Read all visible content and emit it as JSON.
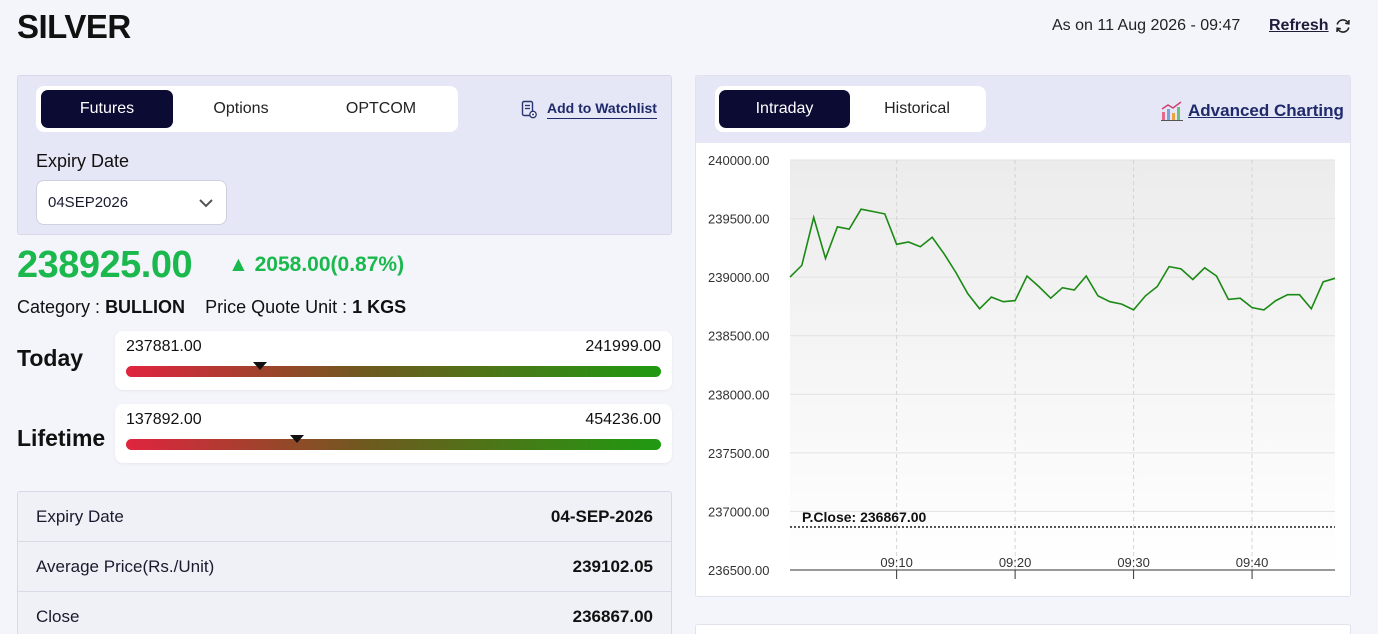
{
  "header": {
    "title": "SILVER",
    "as_of": "As on 11 Aug 2026 - 09:47",
    "refresh_label": "Refresh"
  },
  "instrument_tabs": [
    {
      "label": "Futures",
      "active": true
    },
    {
      "label": "Options",
      "active": false
    },
    {
      "label": "OPTCOM",
      "active": false
    }
  ],
  "watchlist_label": "Add to Watchlist",
  "expiry": {
    "label": "Expiry Date",
    "selected": "04SEP2026"
  },
  "quote": {
    "price": "238925.00",
    "change": "▲ 2058.00(0.87%)",
    "category_label": "Category :",
    "category_value": "BULLION",
    "unit_label": "Price Quote Unit :",
    "unit_value": "1 KGS",
    "color_up": "#1bb84e"
  },
  "ranges": {
    "today": {
      "label": "Today",
      "low": "237881.00",
      "high": "241999.00",
      "current_fraction": 0.25
    },
    "lifetime": {
      "label": "Lifetime",
      "low": "137892.00",
      "high": "454236.00",
      "current_fraction": 0.32
    }
  },
  "details": [
    {
      "label": "Expiry Date",
      "value": "04-SEP-2026"
    },
    {
      "label": "Average Price(Rs./Unit)",
      "value": "239102.05"
    },
    {
      "label": "Close",
      "value": "236867.00"
    }
  ],
  "chart_tabs": [
    {
      "label": "Intraday",
      "active": true
    },
    {
      "label": "Historical",
      "active": false
    }
  ],
  "advanced_charting_label": "Advanced Charting",
  "chart_data": {
    "type": "line",
    "title": "",
    "xlabel": "",
    "ylabel": "",
    "ylim": [
      236500,
      240000
    ],
    "y_ticks": [
      "240000.00",
      "239500.00",
      "239000.00",
      "238500.00",
      "238000.00",
      "237500.00",
      "237000.00",
      "236500.00"
    ],
    "x_ticks": [
      "09:10",
      "09:20",
      "09:30",
      "09:40"
    ],
    "x_tick_minutes": [
      10,
      20,
      30,
      40
    ],
    "x_range_minutes": [
      1,
      47
    ],
    "reference_line": {
      "label": "P.Close: 236867.00",
      "value": 236867
    },
    "line_color": "#1a8a14",
    "series": [
      {
        "x": [
          1,
          2,
          3,
          4,
          5,
          6,
          7,
          8,
          9,
          10,
          11,
          12,
          13,
          14,
          15,
          16,
          17,
          18,
          19,
          20,
          21,
          22,
          23,
          24,
          25,
          26,
          27,
          28,
          29,
          30,
          31,
          32,
          33,
          34,
          35,
          36,
          37,
          38,
          39,
          40,
          41,
          42,
          43,
          44,
          45,
          46,
          47
        ],
        "values": [
          239000,
          239100,
          239510,
          239160,
          239430,
          239410,
          239580,
          239560,
          239540,
          239280,
          239300,
          239260,
          239340,
          239200,
          239040,
          238860,
          238730,
          238830,
          238790,
          238800,
          239010,
          238920,
          238820,
          238910,
          238890,
          239010,
          238840,
          238790,
          238770,
          238720,
          238840,
          238920,
          239090,
          239070,
          238980,
          239080,
          239010,
          238810,
          238820,
          238740,
          238720,
          238800,
          238850,
          238850,
          238730,
          238960,
          238990
        ]
      }
    ]
  }
}
